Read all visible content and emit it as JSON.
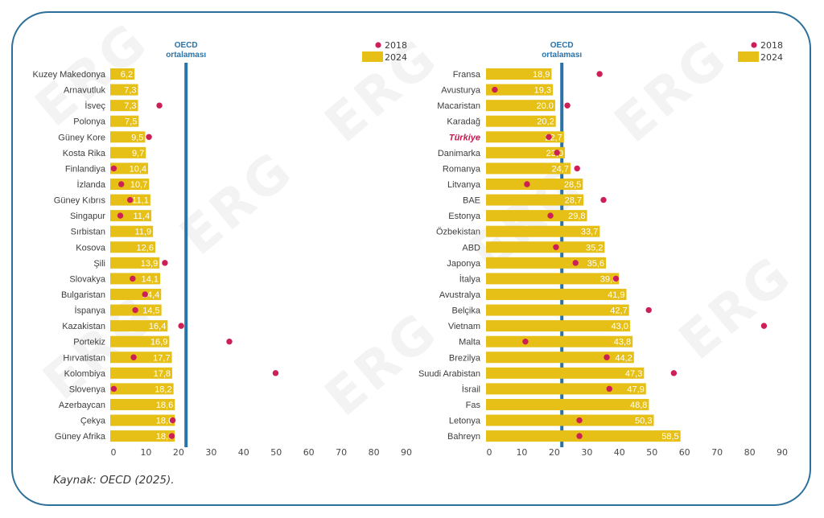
{
  "source": "Kaynak: OECD (2025).",
  "colors": {
    "bar_2024": "#e6bf17",
    "dot_2018": "#cc1f55",
    "oecd_line": "#2a73a8",
    "frame": "#2c6f9a",
    "highlight": "#c8174f"
  },
  "chart_data": [
    {
      "type": "bar",
      "orientation": "horizontal",
      "legend": {
        "position": "top-right",
        "entries": [
          "2018",
          "2024"
        ]
      },
      "reference_line": {
        "label_line1": "OECD",
        "label_line2": "ortalaması",
        "value": 22.3
      },
      "xlim": [
        0,
        90
      ],
      "xticks": [
        "0",
        "10",
        "20",
        "30",
        "40",
        "50",
        "60",
        "70",
        "80",
        "90"
      ],
      "categories": [
        "Kuzey Makedonya",
        "Arnavutluk",
        "İsveç",
        "Polonya",
        "Güney Kore",
        "Kosta Rika",
        "Finlandiya",
        "İzlanda",
        "Güney Kıbrıs",
        "Singapur",
        "Sırbistan",
        "Kosova",
        "Şili",
        "Slovakya",
        "Bulgaristan",
        "İspanya",
        "Kazakistan",
        "Portekiz",
        "Hırvatistan",
        "Kolombiya",
        "Slovenya",
        "Azerbaycan",
        "Çekya",
        "Güney Afrika"
      ],
      "series": [
        {
          "name": "2024",
          "kind": "bar",
          "values": [
            6.2,
            7.3,
            7.3,
            7.5,
            9.5,
            9.7,
            10.4,
            10.7,
            11.1,
            11.4,
            11.9,
            12.6,
            13.9,
            14.1,
            14.4,
            14.5,
            16.4,
            16.9,
            17.7,
            17.8,
            18.2,
            18.6,
            18.6,
            18.6
          ],
          "labels": [
            "6,2",
            "7,3",
            "7,3",
            "7,5",
            "9,5",
            "9,7",
            "10,4",
            "10,7",
            "11,1",
            "11,4",
            "11,9",
            "12,6",
            "13,9",
            "14,1",
            "14,4",
            "14,5",
            "16,4",
            "16,9",
            "17,7",
            "17,8",
            "18,2",
            "18,6",
            "18,6",
            "18,6"
          ]
        },
        {
          "name": "2018",
          "kind": "dot",
          "values": [
            null,
            null,
            14.1,
            null,
            10.9,
            null,
            0.1,
            2.4,
            5.1,
            2.1,
            null,
            null,
            15.8,
            5.9,
            9.7,
            6.7,
            20.8,
            35.6,
            6.2,
            49.8,
            0.1,
            null,
            18.2,
            17.9
          ]
        }
      ],
      "highlight": null
    },
    {
      "type": "bar",
      "orientation": "horizontal",
      "legend": {
        "position": "top-right",
        "entries": [
          "2018",
          "2024"
        ]
      },
      "reference_line": {
        "label_line1": "OECD",
        "label_line2": "ortalaması",
        "value": 22.3
      },
      "xlim": [
        0,
        90
      ],
      "xticks": [
        "0",
        "10",
        "20",
        "30",
        "40",
        "50",
        "60",
        "70",
        "80",
        "90"
      ],
      "categories": [
        "Fransa",
        "Avusturya",
        "Macaristan",
        "Karadağ",
        "Türkiye",
        "Danimarka",
        "Romanya",
        "Litvanya",
        "BAE",
        "Estonya",
        "Özbekistan",
        "ABD",
        "Japonya",
        "İtalya",
        "Avustralya",
        "Belçika",
        "Vietnam",
        "Malta",
        "Brezilya",
        "Suudi Arabistan",
        "İsrail",
        "Fas",
        "Letonya",
        "Bahreyn"
      ],
      "series": [
        {
          "name": "2024",
          "kind": "bar",
          "values": [
            18.9,
            19.3,
            20.0,
            20.2,
            22.7,
            23.0,
            24.7,
            28.5,
            28.7,
            29.8,
            33.7,
            35.2,
            35.6,
            39.6,
            41.9,
            42.7,
            43.0,
            43.8,
            44.2,
            47.3,
            47.9,
            48.8,
            50.3,
            58.5
          ],
          "labels": [
            "18,9",
            "19,3",
            "20.0",
            "20,2",
            "22,7",
            "23,0",
            "24,7",
            "28,5",
            "28,7",
            "29,8",
            "33,7",
            "35,2",
            "35,6",
            "39,6",
            "41,9",
            "42,7",
            "43,0",
            "43,8",
            "44,2",
            "47,3",
            "47,9",
            "48,8",
            "50,3",
            "58,5"
          ]
        },
        {
          "name": "2018",
          "kind": "dot",
          "values": [
            33.9,
            1.7,
            24.0,
            null,
            18.3,
            20.8,
            27.0,
            11.6,
            35.1,
            18.8,
            null,
            20.5,
            26.5,
            38.9,
            null,
            49.0,
            84.4,
            11.1,
            36.1,
            56.7,
            36.9,
            null,
            27.7,
            27.7
          ]
        }
      ],
      "highlight": "Türkiye"
    }
  ]
}
